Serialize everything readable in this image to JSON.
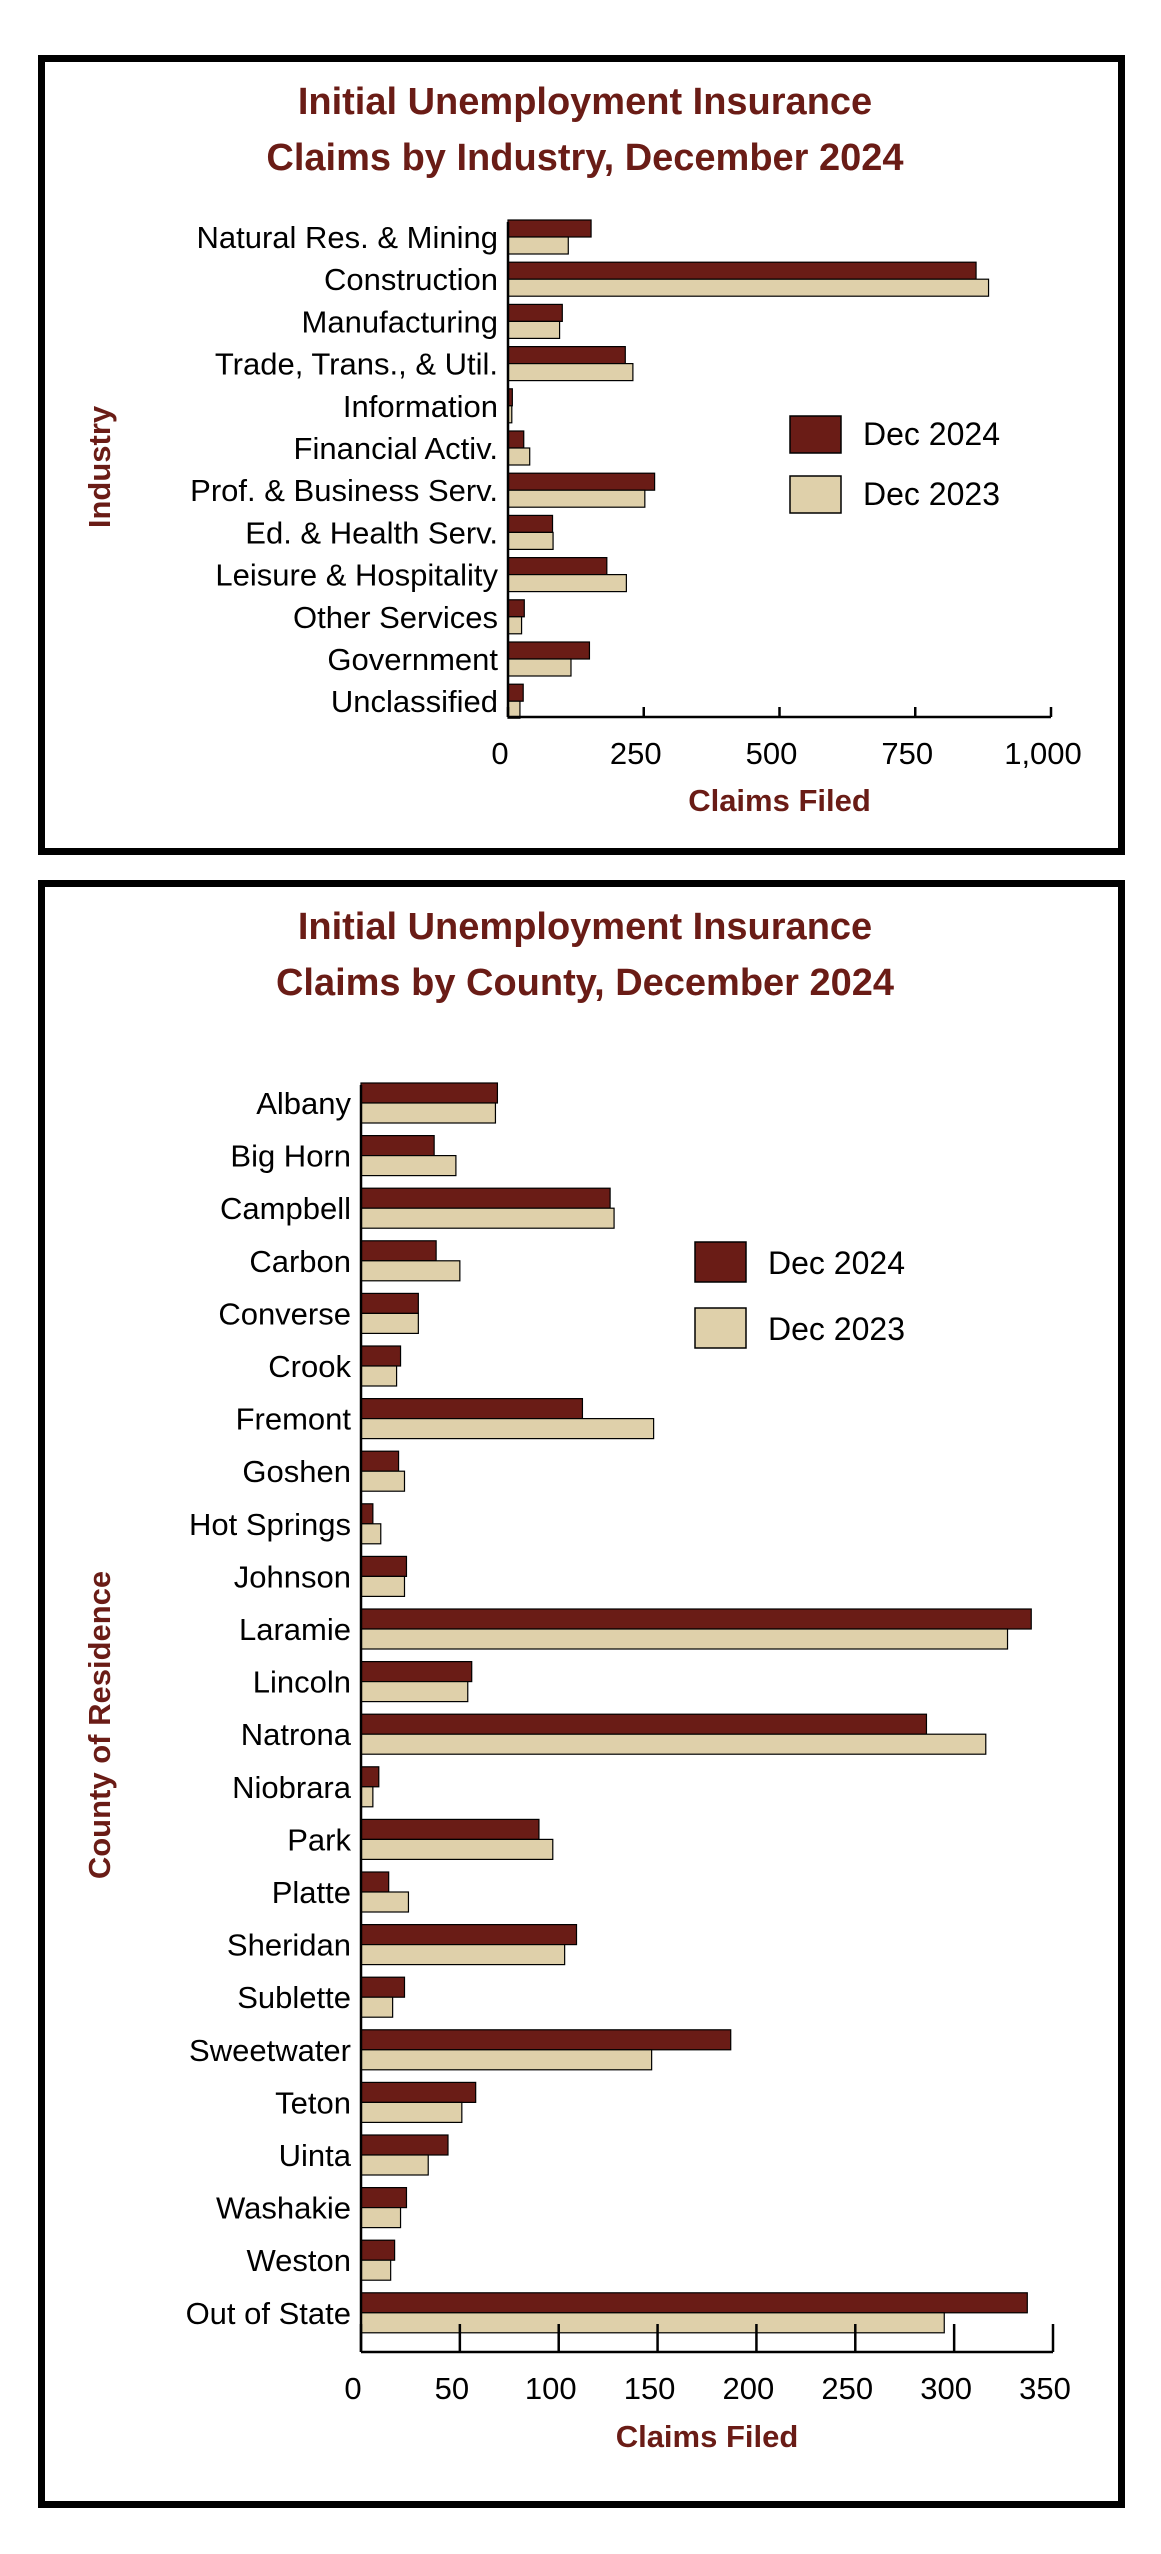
{
  "colors": {
    "dec2024": "#6a1c16",
    "dec2023": "#dfd0aa",
    "title": "#6a1c16"
  },
  "chart_data": [
    {
      "type": "bar",
      "orientation": "horizontal",
      "title": [
        "Initial Unemployment Insurance",
        "Claims by Industry, December 2024"
      ],
      "xlabel": "Claims Filed",
      "ylabel": "Industry",
      "xlim": [
        0,
        1000
      ],
      "xticks": [
        "0",
        "250",
        "500",
        "750",
        "1,000"
      ],
      "xtick_values": [
        0,
        250,
        500,
        750,
        1000
      ],
      "legend_position": "right",
      "categories": [
        "Natural Res. & Mining",
        "Construction",
        "Manufacturing",
        "Trade, Trans., & Util.",
        "Information",
        "Financial Activ.",
        "Prof. & Business Serv.",
        "Ed. & Health Serv.",
        "Leisure & Hospitality",
        "Other Services",
        "Government",
        "Unclassified"
      ],
      "series": [
        {
          "name": "Dec 2024",
          "values": [
            153,
            862,
            100,
            216,
            8,
            29,
            270,
            82,
            182,
            30,
            150,
            28
          ]
        },
        {
          "name": "Dec 2023",
          "values": [
            111,
            885,
            95,
            230,
            7,
            40,
            252,
            83,
            218,
            25,
            116,
            22
          ]
        }
      ]
    },
    {
      "type": "bar",
      "orientation": "horizontal",
      "title": [
        "Initial Unemployment Insurance",
        "Claims by County, December 2024"
      ],
      "xlabel": "Claims Filed",
      "ylabel": "County of Residence",
      "xlim": [
        0,
        350
      ],
      "xticks": [
        "0",
        "50",
        "100",
        "150",
        "200",
        "250",
        "300",
        "350"
      ],
      "xtick_values": [
        0,
        50,
        100,
        150,
        200,
        250,
        300,
        350
      ],
      "legend_position": "right",
      "categories": [
        "Albany",
        "Big Horn",
        "Campbell",
        "Carbon",
        "Converse",
        "Crook",
        "Fremont",
        "Goshen",
        "Hot Springs",
        "Johnson",
        "Laramie",
        "Lincoln",
        "Natrona",
        "Niobrara",
        "Park",
        "Platte",
        "Sheridan",
        "Sublette",
        "Sweetwater",
        "Teton",
        "Uinta",
        "Washakie",
        "Weston",
        "Out of State"
      ],
      "series": [
        {
          "name": "Dec 2024",
          "values": [
            69,
            37,
            126,
            38,
            29,
            20,
            112,
            19,
            6,
            23,
            339,
            56,
            286,
            9,
            90,
            14,
            109,
            22,
            187,
            58,
            44,
            23,
            17,
            337
          ]
        },
        {
          "name": "Dec 2023",
          "values": [
            68,
            48,
            128,
            50,
            29,
            18,
            148,
            22,
            10,
            22,
            327,
            54,
            316,
            6,
            97,
            24,
            103,
            16,
            147,
            51,
            34,
            20,
            15,
            295
          ]
        }
      ]
    }
  ]
}
